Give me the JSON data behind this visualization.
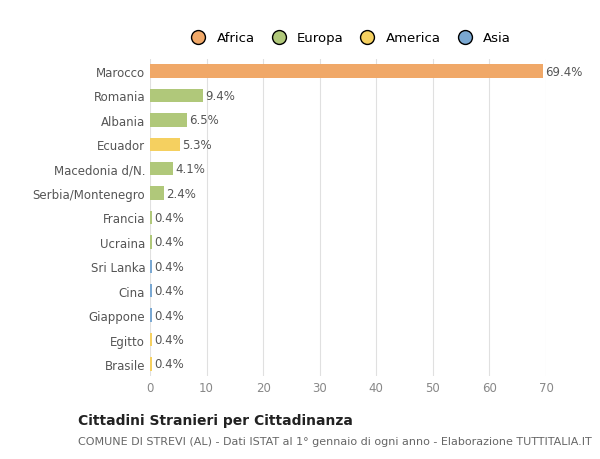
{
  "categories": [
    "Brasile",
    "Egitto",
    "Giappone",
    "Cina",
    "Sri Lanka",
    "Ucraina",
    "Francia",
    "Serbia/Montenegro",
    "Macedonia d/N.",
    "Ecuador",
    "Albania",
    "Romania",
    "Marocco"
  ],
  "values": [
    0.4,
    0.4,
    0.4,
    0.4,
    0.4,
    0.4,
    0.4,
    2.4,
    4.1,
    5.3,
    6.5,
    9.4,
    69.4
  ],
  "colors": [
    "#f5d060",
    "#f5d060",
    "#7aa8d2",
    "#7aa8d2",
    "#7aa8d2",
    "#b0c87a",
    "#b0c87a",
    "#b0c87a",
    "#b0c87a",
    "#f5d060",
    "#b0c87a",
    "#b0c87a",
    "#f0a868"
  ],
  "legend_labels": [
    "Africa",
    "Europa",
    "America",
    "Asia"
  ],
  "legend_colors": [
    "#f0a868",
    "#b0c87a",
    "#f5d060",
    "#7aa8d2"
  ],
  "title": "Cittadini Stranieri per Cittadinanza",
  "subtitle": "COMUNE DI STREVI (AL) - Dati ISTAT al 1° gennaio di ogni anno - Elaborazione TUTTITALIA.IT",
  "xlim": [
    0,
    70
  ],
  "xticks": [
    0,
    10,
    20,
    30,
    40,
    50,
    60,
    70
  ],
  "bg_color": "#ffffff",
  "grid_color": "#e0e0e0",
  "bar_height": 0.55,
  "title_fontsize": 10,
  "subtitle_fontsize": 8,
  "label_fontsize": 8.5,
  "tick_fontsize": 8.5,
  "legend_fontsize": 9.5
}
